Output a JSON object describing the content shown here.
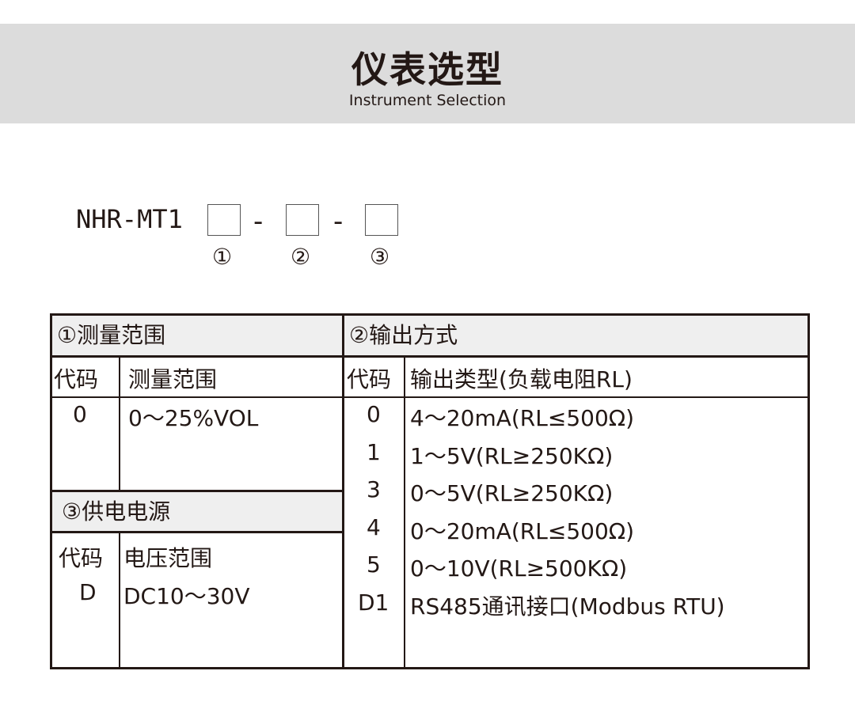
{
  "header": {
    "title": "仪表选型",
    "subtitle": "Instrument Selection"
  },
  "model": {
    "prefix": "NHR-MT1",
    "separator": "-",
    "slots": [
      "①",
      "②",
      "③"
    ]
  },
  "range": {
    "title": "①测量范围",
    "col_code": "代码",
    "col_value": "测量范围",
    "rows": [
      {
        "code": "0",
        "value": "0～25%VOL"
      }
    ]
  },
  "power": {
    "title": "③供电电源",
    "col_code": "代码",
    "col_value": "电压范围",
    "rows": [
      {
        "code": "D",
        "value": "DC10～30V"
      }
    ]
  },
  "output": {
    "title": "②输出方式",
    "col_code": "代码",
    "col_value": "输出类型(负载电阻RL)",
    "rows": [
      {
        "code": "0",
        "value": "4～20mA(RL≤500Ω)"
      },
      {
        "code": "1",
        "value": "1～5V(RL≥250KΩ)"
      },
      {
        "code": "3",
        "value": "0～5V(RL≥250KΩ)"
      },
      {
        "code": "4",
        "value": "0～20mA(RL≤500Ω)"
      },
      {
        "code": "5",
        "value": "0～10V(RL≥500KΩ)"
      },
      {
        "code": "D1",
        "value": "RS485通讯接口(Modbus RTU)"
      }
    ]
  }
}
